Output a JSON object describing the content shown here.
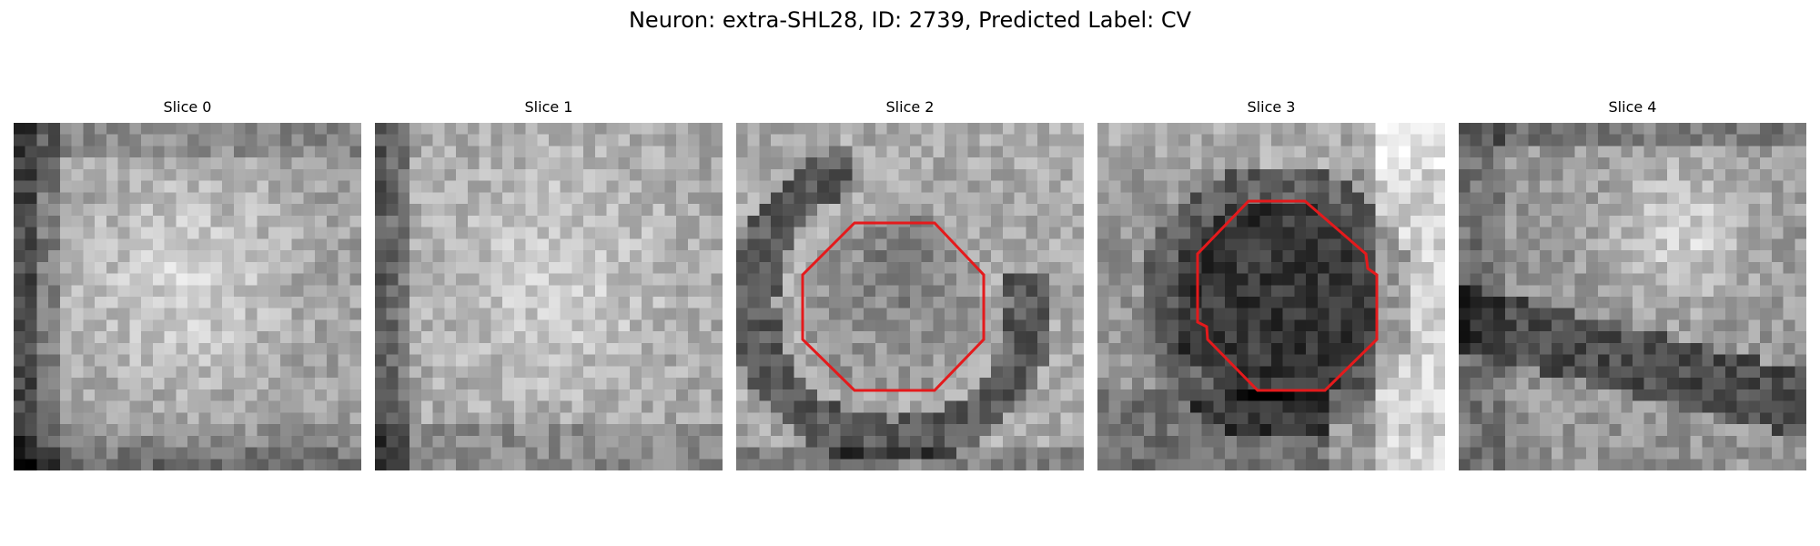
{
  "figure": {
    "title": "Neuron: extra-SHL28, ID: 2739, Predicted Label: CV"
  },
  "panels": [
    {
      "title": "Slice 0",
      "seed": 11,
      "has_roi": false
    },
    {
      "title": "Slice 1",
      "seed": 23,
      "has_roi": false
    },
    {
      "title": "Slice 2",
      "seed": 37,
      "has_roi": true
    },
    {
      "title": "Slice 3",
      "seed": 51,
      "has_roi": true
    },
    {
      "title": "Slice 4",
      "seed": 67,
      "has_roi": false
    }
  ],
  "roi_color": "#e41a1c"
}
